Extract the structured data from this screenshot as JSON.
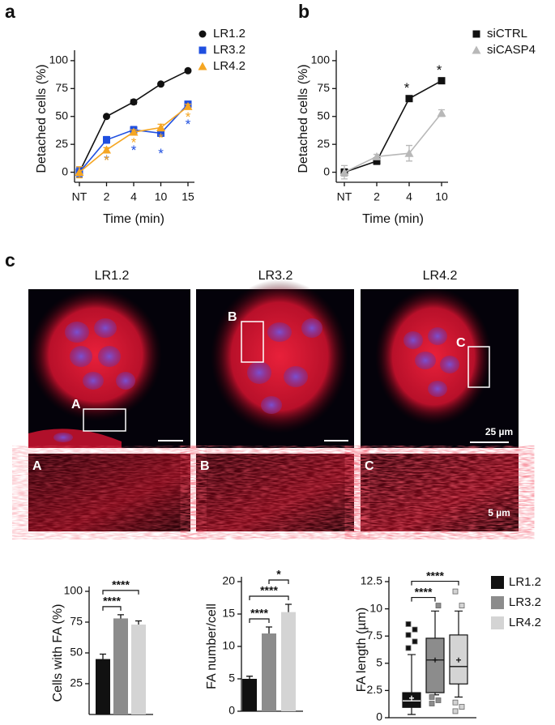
{
  "labels": [
    "a",
    "b",
    "c"
  ],
  "images": {
    "titles": [
      "LR1.2",
      "LR3.2",
      "LR4.2"
    ],
    "regions": [
      "A",
      "B",
      "C"
    ],
    "scale_bars": [
      "25 µm",
      "5 µm"
    ]
  },
  "legend": {
    "names": [
      "LR1.2",
      "LR3.2",
      "LR4.2"
    ],
    "colors": [
      "#111111",
      "#8c8c8c",
      "#d4d4d4"
    ]
  },
  "chart_data": [
    {
      "type": "line",
      "ylabel": "Detached cells (%)",
      "xlabel": "Time (min)",
      "categories": [
        "NT",
        "2",
        "4",
        "10",
        "15"
      ],
      "ylim": [
        -9,
        105
      ],
      "yticks": [
        0,
        25,
        50,
        75,
        100
      ],
      "series": [
        {
          "name": "LR1.2",
          "color": "#111111",
          "marker": "circle",
          "values": [
            0,
            50,
            63,
            79,
            91
          ],
          "errors": [
            4,
            1,
            2,
            1,
            1
          ],
          "significance": [
            null,
            null,
            null,
            null,
            null
          ]
        },
        {
          "name": "LR3.2",
          "color": "#1f4fe0",
          "marker": "square",
          "values": [
            0,
            29,
            38,
            35,
            61
          ],
          "errors": [
            4,
            3,
            3,
            2,
            2
          ],
          "significance": [
            null,
            "*",
            "*",
            "*",
            "*"
          ]
        },
        {
          "name": "LR4.2",
          "color": "#f5a623",
          "marker": "triangle",
          "values": [
            0,
            20,
            36,
            40,
            59
          ],
          "errors": [
            5,
            2,
            2,
            3,
            2
          ],
          "significance": [
            null,
            "*",
            "*",
            "*",
            "*"
          ]
        }
      ]
    },
    {
      "type": "line",
      "ylabel": "Detached cells (%)",
      "xlabel": "Time (min)",
      "categories": [
        "NT",
        "2",
        "4",
        "10"
      ],
      "ylim": [
        -9,
        105
      ],
      "yticks": [
        0,
        25,
        50,
        75,
        100
      ],
      "series": [
        {
          "name": "siCTRL",
          "color": "#111111",
          "marker": "square",
          "values": [
            0,
            10,
            66,
            82
          ],
          "errors": [
            3,
            3,
            1,
            1
          ],
          "significance": [
            null,
            null,
            "*",
            "*"
          ]
        },
        {
          "name": "siCASP4",
          "color": "#b8b8b8",
          "marker": "triangle",
          "values": [
            0,
            14,
            17,
            53
          ],
          "errors": [
            6,
            2,
            7,
            3
          ],
          "significance": [
            null,
            null,
            null,
            null
          ]
        }
      ]
    },
    {
      "type": "bar",
      "ylabel": "Cells with FA (%)",
      "ylim": [
        0,
        100
      ],
      "yticks": [
        25,
        50,
        75,
        100
      ],
      "values": [
        45,
        78,
        73
      ],
      "errors": [
        4,
        3,
        3
      ],
      "colors": [
        "#111111",
        "#8c8c8c",
        "#d4d4d4"
      ],
      "comparisons": [
        {
          "pair": [
            0,
            1
          ],
          "label": "****"
        },
        {
          "pair": [
            0,
            2
          ],
          "label": "****"
        }
      ]
    },
    {
      "type": "bar",
      "ylabel": "FA number/cell",
      "ylim": [
        0,
        20
      ],
      "yticks": [
        0,
        5,
        10,
        15,
        20
      ],
      "values": [
        5,
        12,
        15.3
      ],
      "errors": [
        0.4,
        1,
        1.2
      ],
      "colors": [
        "#111111",
        "#8c8c8c",
        "#d4d4d4"
      ],
      "comparisons": [
        {
          "pair": [
            0,
            1
          ],
          "label": "****"
        },
        {
          "pair": [
            0,
            2
          ],
          "label": "****"
        },
        {
          "pair": [
            1,
            2
          ],
          "label": "*"
        }
      ]
    },
    {
      "type": "box",
      "ylabel": "FA length (µm)",
      "ylim": [
        0,
        12.5
      ],
      "yticks": [
        0,
        2.5,
        5,
        7.5,
        10,
        12.5
      ],
      "colors": [
        "#111111",
        "#8c8c8c",
        "#d4d4d4"
      ],
      "boxes": [
        {
          "whisker_low": 0.3,
          "q1": 0.95,
          "median": 1.55,
          "q3": 2.3,
          "whisker_high": 5.8,
          "mean": 1.8,
          "outliers": [
            6.4,
            7.0,
            7.6,
            8.1,
            8.6
          ]
        },
        {
          "whisker_low": 2.1,
          "q1": 2.3,
          "median": 5.3,
          "q3": 7.3,
          "whisker_high": 9.8,
          "mean": 5.3,
          "outliers": [
            1.3,
            1.6,
            1.9,
            10.3
          ]
        },
        {
          "whisker_low": 1.9,
          "q1": 3.1,
          "median": 4.7,
          "q3": 7.6,
          "whisker_high": 9.8,
          "mean": 5.3,
          "outliers": [
            0.6,
            1.0,
            1.4,
            10.3,
            11.6
          ]
        }
      ],
      "comparisons": [
        {
          "pair": [
            0,
            1
          ],
          "label": "****"
        },
        {
          "pair": [
            0,
            2
          ],
          "label": "****"
        }
      ]
    }
  ]
}
